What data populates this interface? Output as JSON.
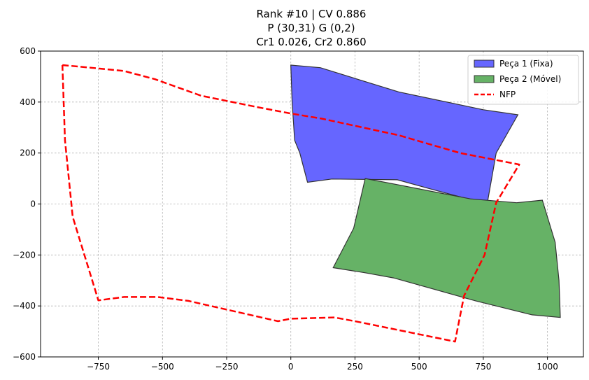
{
  "chart_data": {
    "type": "area",
    "title_lines": [
      "Rank #10 | CV 0.886",
      "P (30,31) G (0,2)",
      "Cr1 0.026, Cr2 0.860"
    ],
    "xlim": [
      -975,
      1140
    ],
    "ylim": [
      -600,
      600
    ],
    "x_ticks": [
      -750,
      -500,
      -250,
      0,
      250,
      500,
      750,
      1000
    ],
    "x_tick_labels": [
      "−750",
      "−500",
      "−250",
      "0",
      "250",
      "500",
      "750",
      "1000"
    ],
    "y_ticks": [
      -600,
      -400,
      -200,
      0,
      200,
      400,
      600
    ],
    "y_tick_labels": [
      "−600",
      "−400",
      "−200",
      "0",
      "200",
      "400",
      "600"
    ],
    "grid": true,
    "legend_position": "top-right",
    "series": [
      {
        "name": "Peça 1 (Fixa)",
        "kind": "polygon",
        "color": "#6666ff",
        "edge_color": "#333333",
        "points": [
          [
            0,
            545
          ],
          [
            115,
            535
          ],
          [
            420,
            440
          ],
          [
            750,
            370
          ],
          [
            885,
            350
          ],
          [
            800,
            200
          ],
          [
            765,
            0
          ],
          [
            540,
            60
          ],
          [
            415,
            95
          ],
          [
            160,
            98
          ],
          [
            65,
            85
          ],
          [
            35,
            200
          ],
          [
            15,
            250
          ],
          [
            5,
            400
          ]
        ]
      },
      {
        "name": "Peça 2 (Móvel)",
        "kind": "polygon",
        "color": "#66b266",
        "edge_color": "#333333",
        "points": [
          [
            290,
            100
          ],
          [
            420,
            75
          ],
          [
            700,
            20
          ],
          [
            880,
            5
          ],
          [
            980,
            15
          ],
          [
            1030,
            -150
          ],
          [
            1045,
            -300
          ],
          [
            1050,
            -445
          ],
          [
            940,
            -435
          ],
          [
            720,
            -380
          ],
          [
            400,
            -290
          ],
          [
            290,
            -270
          ],
          [
            165,
            -250
          ],
          [
            245,
            -95
          ]
        ]
      },
      {
        "name": "NFP",
        "kind": "polyline",
        "color": "#ff0000",
        "points": [
          [
            -890,
            545
          ],
          [
            -780,
            535
          ],
          [
            -650,
            522
          ],
          [
            -530,
            490
          ],
          [
            -350,
            425
          ],
          [
            -130,
            380
          ],
          [
            0,
            355
          ],
          [
            120,
            335
          ],
          [
            420,
            270
          ],
          [
            660,
            200
          ],
          [
            890,
            155
          ],
          [
            800,
            5
          ],
          [
            755,
            -200
          ],
          [
            675,
            -360
          ],
          [
            640,
            -540
          ],
          [
            250,
            -460
          ],
          [
            170,
            -445
          ],
          [
            0,
            -450
          ],
          [
            -50,
            -460
          ],
          [
            -400,
            -380
          ],
          [
            -520,
            -365
          ],
          [
            -650,
            -365
          ],
          [
            -750,
            -378
          ],
          [
            -850,
            -50
          ],
          [
            -880,
            250
          ],
          [
            -890,
            545
          ]
        ]
      }
    ]
  }
}
